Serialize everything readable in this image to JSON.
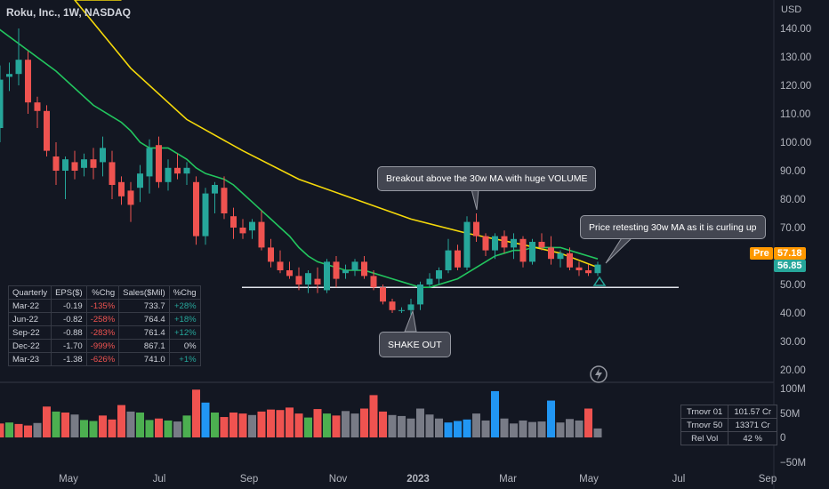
{
  "header": {
    "title": "Roku, Inc., 1W, NASDAQ"
  },
  "price_axis": {
    "currency": "USD",
    "ticks": [
      "140.00",
      "130.00",
      "120.00",
      "110.00",
      "100.00",
      "90.00",
      "80.00",
      "70.00",
      "50.00",
      "40.00",
      "30.00",
      "20.00"
    ]
  },
  "volume_axis": {
    "ticks": [
      "100M",
      "50M",
      "0",
      "−50M"
    ]
  },
  "time_axis": {
    "ticks": [
      "May",
      "Jul",
      "Sep",
      "Nov",
      "2023",
      "Mar",
      "May",
      "Jul",
      "Sep"
    ]
  },
  "price_labels": {
    "pre_label": "Pre",
    "pre_value": "57.18",
    "last_value": "56.85"
  },
  "annotations": {
    "breakout": "Breakout above the 30w MA with huge VOLUME",
    "retest": "Price retesting 30w MA as it is curling up",
    "shakeout": "SHAKE OUT"
  },
  "eps_table": {
    "headers": [
      "Quarterly",
      "EPS($)",
      "%Chg",
      "Sales($Mil)",
      "%Chg"
    ],
    "rows": [
      [
        "Mar-22",
        "-0.19",
        "-135%",
        "733.7",
        "+28%"
      ],
      [
        "Jun-22",
        "-0.82",
        "-258%",
        "764.4",
        "+18%"
      ],
      [
        "Sep-22",
        "-0.88",
        "-283%",
        "761.4",
        "+12%"
      ],
      [
        "Dec-22",
        "-1.70",
        "-999%",
        "867.1",
        "0%"
      ],
      [
        "Mar-23",
        "-1.38",
        "-626%",
        "741.0",
        "+1%"
      ]
    ]
  },
  "turnover_table": {
    "rows": [
      [
        "Trnovr 01",
        "101.57 Cr"
      ],
      [
        "Trnovr 50",
        "13371 Cr"
      ],
      [
        "Rel Vol",
        "42 %"
      ]
    ]
  },
  "colors": {
    "up": "#26a69a",
    "down": "#ef5350",
    "ma_fast": "#22c55e",
    "ma_slow": "#f5d90a",
    "vol_blue": "#2196f3",
    "vol_gray": "#787b86",
    "pre_tag": "#ff9800",
    "last_tag": "#26a69a"
  },
  "chart_data": {
    "type": "candlestick",
    "interval": "1W",
    "y_unit": "USD",
    "ylim": [
      15,
      149
    ],
    "support_level": 49,
    "candles": [
      {
        "o": 105,
        "h": 127,
        "l": 100,
        "c": 122
      },
      {
        "o": 123,
        "h": 128,
        "l": 118,
        "c": 124
      },
      {
        "o": 124,
        "h": 140,
        "l": 120,
        "c": 129
      },
      {
        "o": 129,
        "h": 132,
        "l": 110,
        "c": 114
      },
      {
        "o": 114,
        "h": 116,
        "l": 105,
        "c": 111
      },
      {
        "o": 111,
        "h": 113,
        "l": 95,
        "c": 97
      },
      {
        "o": 95,
        "h": 100,
        "l": 85,
        "c": 90
      },
      {
        "o": 90,
        "h": 95,
        "l": 80,
        "c": 94
      },
      {
        "o": 93,
        "h": 97,
        "l": 87,
        "c": 90
      },
      {
        "o": 91,
        "h": 96,
        "l": 88,
        "c": 94
      },
      {
        "o": 94,
        "h": 98,
        "l": 87,
        "c": 91
      },
      {
        "o": 93,
        "h": 102,
        "l": 88,
        "c": 98
      },
      {
        "o": 93,
        "h": 97,
        "l": 80,
        "c": 85
      },
      {
        "o": 86,
        "h": 88,
        "l": 78,
        "c": 81
      },
      {
        "o": 83,
        "h": 86,
        "l": 72,
        "c": 78
      },
      {
        "o": 84,
        "h": 92,
        "l": 79,
        "c": 89
      },
      {
        "o": 88,
        "h": 101,
        "l": 82,
        "c": 98
      },
      {
        "o": 99,
        "h": 102,
        "l": 84,
        "c": 86
      },
      {
        "o": 86,
        "h": 94,
        "l": 83,
        "c": 91
      },
      {
        "o": 91,
        "h": 96,
        "l": 87,
        "c": 89
      },
      {
        "o": 89,
        "h": 93,
        "l": 85,
        "c": 91
      },
      {
        "o": 86,
        "h": 88,
        "l": 64,
        "c": 67
      },
      {
        "o": 67,
        "h": 84,
        "l": 64,
        "c": 82
      },
      {
        "o": 82,
        "h": 86,
        "l": 75,
        "c": 85
      },
      {
        "o": 84,
        "h": 88,
        "l": 73,
        "c": 75
      },
      {
        "o": 74,
        "h": 77,
        "l": 66,
        "c": 70
      },
      {
        "o": 70,
        "h": 73,
        "l": 66,
        "c": 68
      },
      {
        "o": 69,
        "h": 73,
        "l": 66,
        "c": 72
      },
      {
        "o": 72,
        "h": 76,
        "l": 62,
        "c": 63
      },
      {
        "o": 63,
        "h": 66,
        "l": 56,
        "c": 58
      },
      {
        "o": 58,
        "h": 62,
        "l": 54,
        "c": 55
      },
      {
        "o": 55,
        "h": 58,
        "l": 52,
        "c": 53
      },
      {
        "o": 53,
        "h": 56,
        "l": 48,
        "c": 50
      },
      {
        "o": 50,
        "h": 55,
        "l": 47,
        "c": 54
      },
      {
        "o": 52,
        "h": 56,
        "l": 47,
        "c": 50
      },
      {
        "o": 48,
        "h": 59,
        "l": 47,
        "c": 58
      },
      {
        "o": 58,
        "h": 60,
        "l": 49,
        "c": 52
      },
      {
        "o": 54,
        "h": 57,
        "l": 52,
        "c": 55
      },
      {
        "o": 55,
        "h": 59,
        "l": 53,
        "c": 58
      },
      {
        "o": 58,
        "h": 60,
        "l": 52,
        "c": 53
      },
      {
        "o": 53,
        "h": 55,
        "l": 48,
        "c": 49
      },
      {
        "o": 49,
        "h": 50,
        "l": 43,
        "c": 44
      },
      {
        "o": 44,
        "h": 45,
        "l": 40,
        "c": 41
      },
      {
        "o": 41,
        "h": 42,
        "l": 40,
        "c": 41
      },
      {
        "o": 41,
        "h": 45,
        "l": 38,
        "c": 43
      },
      {
        "o": 43,
        "h": 51,
        "l": 41,
        "c": 50
      },
      {
        "o": 50,
        "h": 54,
        "l": 49,
        "c": 52
      },
      {
        "o": 52,
        "h": 56,
        "l": 50,
        "c": 55
      },
      {
        "o": 55,
        "h": 66,
        "l": 54,
        "c": 62
      },
      {
        "o": 62,
        "h": 64,
        "l": 55,
        "c": 56
      },
      {
        "o": 56,
        "h": 74,
        "l": 55,
        "c": 72
      },
      {
        "o": 72,
        "h": 75,
        "l": 65,
        "c": 67
      },
      {
        "o": 67,
        "h": 68,
        "l": 60,
        "c": 62
      },
      {
        "o": 62,
        "h": 68,
        "l": 59,
        "c": 67
      },
      {
        "o": 67,
        "h": 69,
        "l": 61,
        "c": 63
      },
      {
        "o": 63,
        "h": 68,
        "l": 59,
        "c": 66
      },
      {
        "o": 66,
        "h": 67,
        "l": 56,
        "c": 58
      },
      {
        "o": 58,
        "h": 66,
        "l": 57,
        "c": 65
      },
      {
        "o": 65,
        "h": 68,
        "l": 62,
        "c": 63
      },
      {
        "o": 63,
        "h": 67,
        "l": 57,
        "c": 59
      },
      {
        "o": 59,
        "h": 62,
        "l": 56,
        "c": 61
      },
      {
        "o": 61,
        "h": 63,
        "l": 55,
        "c": 56
      },
      {
        "o": 56,
        "h": 58,
        "l": 53,
        "c": 55
      },
      {
        "o": 55,
        "h": 57,
        "l": 53,
        "c": 54
      },
      {
        "o": 54,
        "h": 58,
        "l": 53,
        "c": 57
      }
    ],
    "volume_M": [
      28,
      30,
      27,
      24,
      29,
      62,
      52,
      50,
      46,
      35,
      33,
      44,
      36,
      65,
      52,
      50,
      35,
      38,
      34,
      32,
      44,
      96,
      70,
      50,
      41,
      50,
      48,
      45,
      52,
      56,
      55,
      60,
      48,
      40,
      57,
      48,
      44,
      53,
      48,
      58,
      85,
      52,
      45,
      43,
      38,
      58,
      46,
      38,
      30,
      33,
      36,
      48,
      34,
      93,
      38,
      28,
      34,
      31,
      32,
      74,
      30,
      37,
      34,
      58,
      18
    ],
    "volume_color": [
      "down",
      "up",
      "down",
      "down",
      "gray",
      "down",
      "up",
      "down",
      "gray",
      "up",
      "up",
      "down",
      "down",
      "down",
      "gray",
      "up",
      "up",
      "down",
      "up",
      "gray",
      "up",
      "down",
      "blue",
      "up",
      "down",
      "down",
      "down",
      "gray",
      "down",
      "down",
      "down",
      "down",
      "down",
      "up",
      "down",
      "up",
      "down",
      "gray",
      "gray",
      "down",
      "down",
      "down",
      "gray",
      "gray",
      "gray",
      "gray",
      "gray",
      "gray",
      "blue",
      "blue",
      "blue",
      "gray",
      "gray",
      "blue",
      "gray",
      "gray",
      "gray",
      "gray",
      "gray",
      "blue",
      "gray",
      "gray",
      "gray",
      "down",
      "gray"
    ],
    "ma_fast": [
      null,
      null,
      null,
      null,
      null,
      null,
      null,
      null,
      null,
      null,
      null,
      null,
      null,
      107,
      104,
      100,
      98,
      98,
      98,
      96,
      94,
      91,
      89,
      88,
      87,
      85,
      82,
      79,
      76,
      73,
      70,
      67,
      63,
      60,
      58,
      57,
      56,
      55,
      55,
      55,
      54,
      53,
      52,
      51,
      50,
      49,
      49,
      50,
      51,
      52,
      54,
      56,
      58,
      60,
      61,
      62,
      62,
      63,
      63,
      63,
      63,
      62,
      61,
      60,
      59
    ],
    "ma_slow": [
      null,
      null,
      null,
      null,
      null,
      null,
      null,
      null,
      null,
      null,
      null,
      null,
      null,
      null,
      null,
      null,
      null,
      null,
      null,
      null,
      null,
      null,
      null,
      null,
      null,
      null,
      null,
      null,
      null,
      null,
      null,
      null,
      null,
      null,
      null,
      null,
      null,
      null,
      null,
      null,
      null,
      null,
      null,
      null,
      null,
      null,
      null,
      null,
      null,
      null,
      null,
      null,
      null,
      null,
      null,
      null,
      null,
      null,
      null,
      null,
      null,
      null,
      null,
      null,
      null
    ],
    "ma_slow_points": [
      [
        8,
        150
      ],
      [
        14,
        126
      ],
      [
        20,
        108
      ],
      [
        26,
        97
      ],
      [
        32,
        87
      ],
      [
        38,
        80
      ],
      [
        44,
        73
      ],
      [
        50,
        68
      ],
      [
        56,
        64
      ],
      [
        60,
        61
      ],
      [
        64,
        56
      ]
    ]
  }
}
